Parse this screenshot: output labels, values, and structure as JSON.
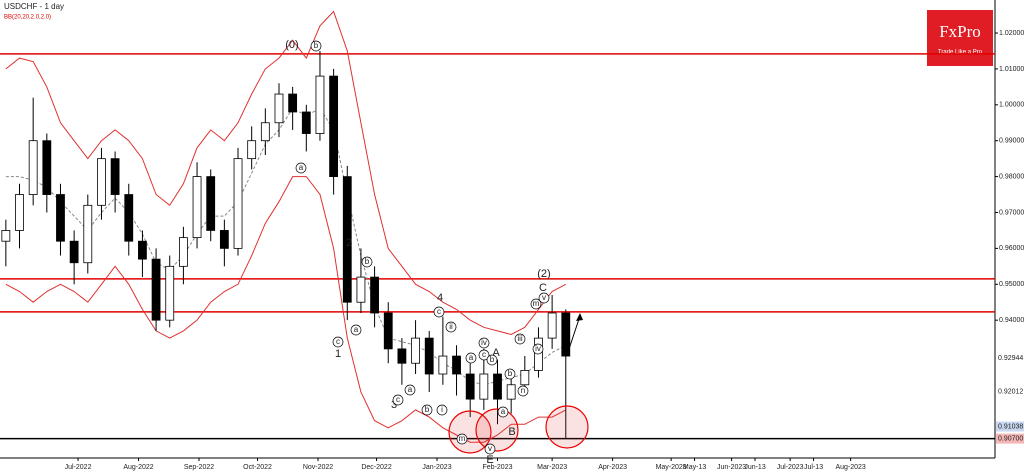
{
  "chart_data": {
    "type": "candlestick",
    "title": "USDCHF - 1 day",
    "indicator_label": "BB(20,20,2.0,2.0)",
    "logo": {
      "brand": "FxPro",
      "tagline": "Trade Like a Pro"
    },
    "xlim": [
      1,
      511
    ],
    "ylim": [
      0.9016,
      1.0292
    ],
    "xticks": [
      {
        "value": 41,
        "label": "Jul-2022"
      },
      {
        "value": 72,
        "label": "Aug-2022"
      },
      {
        "value": 103,
        "label": "Sep-2022"
      },
      {
        "value": 133,
        "label": "Oct-2022"
      },
      {
        "value": 164,
        "label": "Nov-2022"
      },
      {
        "value": 194,
        "label": "Dec-2022"
      },
      {
        "value": 225,
        "label": "Jan-2023"
      },
      {
        "value": 256,
        "label": "Feb-2023"
      },
      {
        "value": 284,
        "label": "Mar-2023"
      },
      {
        "value": 315,
        "label": "Apr-2023"
      },
      {
        "value": 345,
        "label": "May-2023"
      },
      {
        "value": 357,
        "label": "May-13"
      },
      {
        "value": 376,
        "label": "Jun-2023"
      },
      {
        "value": 388,
        "label": "Jun-13"
      },
      {
        "value": 406,
        "label": "Jul-2023"
      },
      {
        "value": 418,
        "label": "Jul-13"
      },
      {
        "value": 437,
        "label": "Aug-2023"
      }
    ],
    "yticks": [
      {
        "value": 1.02,
        "label": "1.02000"
      },
      {
        "value": 1.01,
        "label": "1.01000"
      },
      {
        "value": 1.0,
        "label": "1.00000"
      },
      {
        "value": 0.99,
        "label": "0.99000"
      },
      {
        "value": 0.98,
        "label": "0.98000"
      },
      {
        "value": 0.97,
        "label": "0.97000"
      },
      {
        "value": 0.96,
        "label": "0.96000"
      },
      {
        "value": 0.95,
        "label": "0.95000"
      },
      {
        "value": 0.94,
        "label": "0.94000"
      }
    ],
    "price_labels": [
      {
        "value": 0.92944,
        "label": "0.92944",
        "color": "#ffffff"
      },
      {
        "value": 0.92012,
        "label": "0.92012",
        "color": "#ffffff"
      },
      {
        "value": 0.91038,
        "label": "0.91038",
        "color": "#c9d7f0"
      },
      {
        "value": 0.907,
        "label": "0.90700",
        "color": "#f4b6b6"
      }
    ],
    "levels": [
      {
        "value": 1.0142,
        "color": "#e00000"
      },
      {
        "value": 0.9515,
        "color": "#e00000"
      },
      {
        "value": 0.9423,
        "color": "#e00000"
      },
      {
        "value": 0.907,
        "color": "#000000"
      }
    ],
    "candles": {
      "x": [
        4,
        11,
        18,
        25,
        32,
        39,
        46,
        53,
        60,
        67,
        74,
        81,
        88,
        95,
        102,
        109,
        116,
        123,
        130,
        137,
        144,
        151,
        158,
        165,
        172,
        179,
        186,
        193,
        200,
        207,
        214,
        221,
        228,
        235,
        242,
        249,
        256,
        263,
        270,
        277,
        284,
        291
      ],
      "open": [
        0.962,
        0.965,
        0.975,
        0.99,
        0.975,
        0.962,
        0.956,
        0.972,
        0.985,
        0.975,
        0.962,
        0.957,
        0.94,
        0.955,
        0.963,
        0.98,
        0.965,
        0.96,
        0.985,
        0.99,
        0.995,
        1.003,
        0.998,
        0.992,
        1.008,
        0.98,
        0.945,
        0.952,
        0.942,
        0.932,
        0.928,
        0.935,
        0.925,
        0.93,
        0.925,
        0.918,
        0.925,
        0.918,
        0.922,
        0.926,
        0.935,
        0.942
      ],
      "high": [
        0.968,
        0.978,
        1.002,
        0.992,
        0.978,
        0.965,
        0.975,
        0.988,
        0.987,
        0.978,
        0.965,
        0.96,
        0.958,
        0.966,
        0.984,
        0.982,
        0.968,
        0.988,
        0.994,
        0.999,
        1.006,
        1.005,
        1.0,
        1.015,
        1.01,
        0.983,
        0.96,
        0.955,
        0.945,
        0.935,
        0.94,
        0.937,
        0.941,
        0.933,
        0.928,
        0.932,
        0.929,
        0.926,
        0.93,
        0.938,
        0.947,
        0.943
      ],
      "low": [
        0.955,
        0.96,
        0.972,
        0.97,
        0.958,
        0.95,
        0.953,
        0.968,
        0.97,
        0.958,
        0.952,
        0.937,
        0.938,
        0.95,
        0.96,
        0.962,
        0.955,
        0.958,
        0.982,
        0.986,
        0.991,
        0.993,
        0.987,
        0.99,
        0.975,
        0.94,
        0.942,
        0.938,
        0.928,
        0.922,
        0.925,
        0.92,
        0.922,
        0.919,
        0.913,
        0.915,
        0.911,
        0.914,
        0.919,
        0.924,
        0.932,
        0.907
      ],
      "close": [
        0.965,
        0.975,
        0.99,
        0.975,
        0.962,
        0.956,
        0.972,
        0.985,
        0.975,
        0.962,
        0.957,
        0.94,
        0.955,
        0.963,
        0.98,
        0.965,
        0.96,
        0.985,
        0.99,
        0.995,
        1.003,
        0.998,
        0.992,
        1.008,
        0.98,
        0.945,
        0.952,
        0.942,
        0.932,
        0.928,
        0.935,
        0.925,
        0.93,
        0.925,
        0.918,
        0.925,
        0.918,
        0.922,
        0.926,
        0.935,
        0.942,
        0.93
      ]
    },
    "bands": [
      {
        "color": "#e03030",
        "dashed": false,
        "values": [
          1.01,
          1.013,
          1.012,
          1.005,
          0.995,
          0.99,
          0.985,
          0.99,
          0.993,
          0.99,
          0.985,
          0.975,
          0.972,
          0.978,
          0.988,
          0.993,
          0.99,
          0.995,
          1.003,
          1.01,
          1.013,
          1.018,
          1.013,
          1.022,
          1.026,
          1.015,
          0.995,
          0.975,
          0.96,
          0.955,
          0.95,
          0.948,
          0.945,
          0.943,
          0.94,
          0.938,
          0.937,
          0.936,
          0.938,
          0.943,
          0.948,
          0.95
        ]
      },
      {
        "color": "#888888",
        "dashed": true,
        "values": [
          0.98,
          0.98,
          0.979,
          0.977,
          0.973,
          0.969,
          0.965,
          0.97,
          0.974,
          0.97,
          0.964,
          0.956,
          0.954,
          0.958,
          0.964,
          0.969,
          0.969,
          0.973,
          0.981,
          0.989,
          0.993,
          0.999,
          0.997,
          0.999,
          0.993,
          0.975,
          0.958,
          0.944,
          0.935,
          0.934,
          0.933,
          0.931,
          0.928,
          0.926,
          0.923,
          0.922,
          0.923,
          0.924,
          0.925,
          0.928,
          0.931,
          0.933
        ]
      },
      {
        "color": "#e03030",
        "dashed": false,
        "values": [
          0.95,
          0.948,
          0.945,
          0.948,
          0.95,
          0.948,
          0.945,
          0.95,
          0.955,
          0.95,
          0.943,
          0.937,
          0.935,
          0.937,
          0.94,
          0.945,
          0.948,
          0.95,
          0.958,
          0.967,
          0.973,
          0.98,
          0.98,
          0.975,
          0.96,
          0.935,
          0.92,
          0.912,
          0.91,
          0.912,
          0.915,
          0.913,
          0.91,
          0.908,
          0.906,
          0.906,
          0.908,
          0.911,
          0.911,
          0.913,
          0.913,
          0.915
        ]
      }
    ],
    "annotations": [
      {
        "text": "(0)",
        "circled": false
      },
      {
        "text": "b",
        "circled": true
      },
      {
        "text": "a",
        "circled": true
      },
      {
        "text": "2",
        "circled": false
      },
      {
        "text": "b",
        "circled": true
      },
      {
        "text": "1",
        "circled": false
      },
      {
        "text": "c",
        "circled": true
      },
      {
        "text": "a",
        "circled": true
      },
      {
        "text": "3",
        "circled": false
      },
      {
        "text": "c",
        "circled": true
      },
      {
        "text": "a",
        "circled": true
      },
      {
        "text": "4",
        "circled": false
      },
      {
        "text": "c",
        "circled": true
      },
      {
        "text": "ii",
        "circled": true
      },
      {
        "text": "i",
        "circled": true
      },
      {
        "text": "b",
        "circled": true
      },
      {
        "text": "iv",
        "circled": true
      },
      {
        "text": "A",
        "circled": false
      },
      {
        "text": "c",
        "circled": true
      },
      {
        "text": "a",
        "circled": true
      },
      {
        "text": "b",
        "circled": true
      },
      {
        "text": "iii",
        "circled": true
      },
      {
        "text": "(2)",
        "circled": false
      },
      {
        "text": "C",
        "circled": false
      },
      {
        "text": "m",
        "circled": true
      },
      {
        "text": "v",
        "circled": true
      },
      {
        "text": "iv",
        "circled": true
      },
      {
        "text": "B",
        "circled": false
      },
      {
        "text": "E",
        "circled": false
      },
      {
        "text": "v",
        "circled": true
      },
      {
        "text": "m",
        "circled": true
      },
      {
        "text": "a",
        "circled": true
      },
      {
        "text": "b",
        "circled": true
      },
      {
        "text": "n",
        "circled": true
      }
    ]
  }
}
